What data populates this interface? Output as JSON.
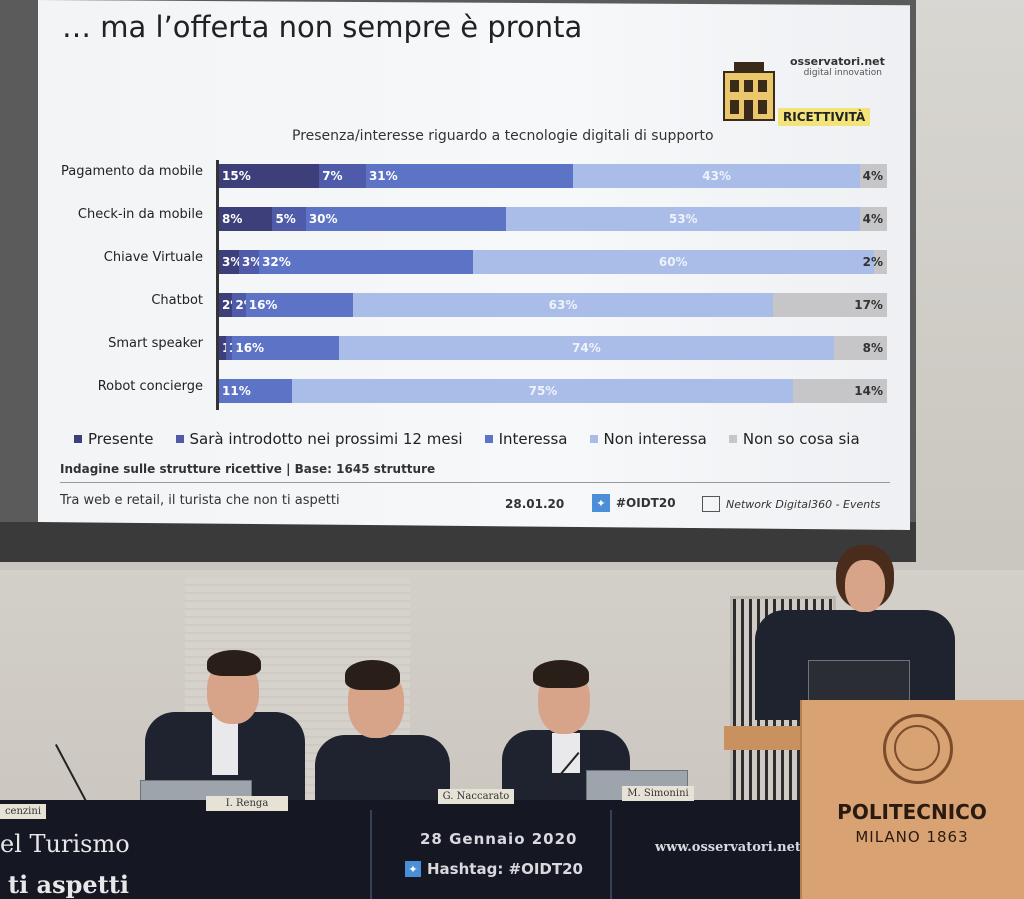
{
  "slide": {
    "title": "… ma l’offerta non sempre è pronta",
    "brand_name": "osservatori.net",
    "brand_sub": "digital innovation",
    "badge": "RICETTIVITÀ",
    "chart_title": "Presenza/interesse riguardo a tecnologie digitali di supporto",
    "survey_note": "Indagine sulle strutture ricettive | Base: 1645 strutture",
    "footer_left": "Tra web e retail, il turista che non ti aspetti",
    "footer_date": "28.01.20",
    "footer_hashtag": "#OIDT20",
    "footer_network": "Network Digital360 - Events"
  },
  "chart_data": {
    "type": "bar",
    "orientation": "horizontal-stacked-100",
    "categories": [
      "Pagamento da mobile",
      "Check-in da mobile",
      "Chiave Virtuale",
      "Chatbot",
      "Smart speaker",
      "Robot concierge"
    ],
    "series": [
      {
        "name": "Presente",
        "values": [
          15,
          8,
          3,
          2,
          1,
          0
        ],
        "labels": [
          "15%",
          "8%",
          "3%",
          "2%",
          "1%",
          ""
        ],
        "color": "#3d3f7a"
      },
      {
        "name": "Sarà introdotto nei prossimi 12 mesi",
        "values": [
          7,
          5,
          3,
          2,
          1,
          0
        ],
        "labels": [
          "7%",
          "5%",
          "3%",
          "2%",
          "1%",
          ""
        ],
        "color": "#4f5ba8"
      },
      {
        "name": "Interessa",
        "values": [
          31,
          30,
          32,
          16,
          16,
          11
        ],
        "labels": [
          "31%",
          "30%",
          "32%",
          "16%",
          "16%",
          "11%"
        ],
        "color": "#5d73c6"
      },
      {
        "name": "Non interessa",
        "values": [
          43,
          53,
          60,
          63,
          74,
          75
        ],
        "labels": [
          "43%",
          "53%",
          "60%",
          "63%",
          "74%",
          "75%"
        ],
        "color": "#a9bde8"
      },
      {
        "name": "Non so cosa sia",
        "values": [
          4,
          4,
          2,
          17,
          8,
          14
        ],
        "labels": [
          "4%",
          "4%",
          "2%",
          "17%",
          "8%",
          "14%"
        ],
        "color": "#c6c6c8"
      }
    ],
    "legend_position": "bottom"
  },
  "desk": {
    "text_a": "el Turismo",
    "text_b": "ti aspetti",
    "date": "28 Gennaio 2020",
    "hashtag": "Hashtag: #OIDT20",
    "website": "www.osservatori.net",
    "nameplates": [
      "cenzini",
      "I. Renga",
      "G. Naccarato",
      "M. Simonini"
    ]
  },
  "podium": {
    "name": "POLITECNICO",
    "city": "MILANO 1863"
  }
}
